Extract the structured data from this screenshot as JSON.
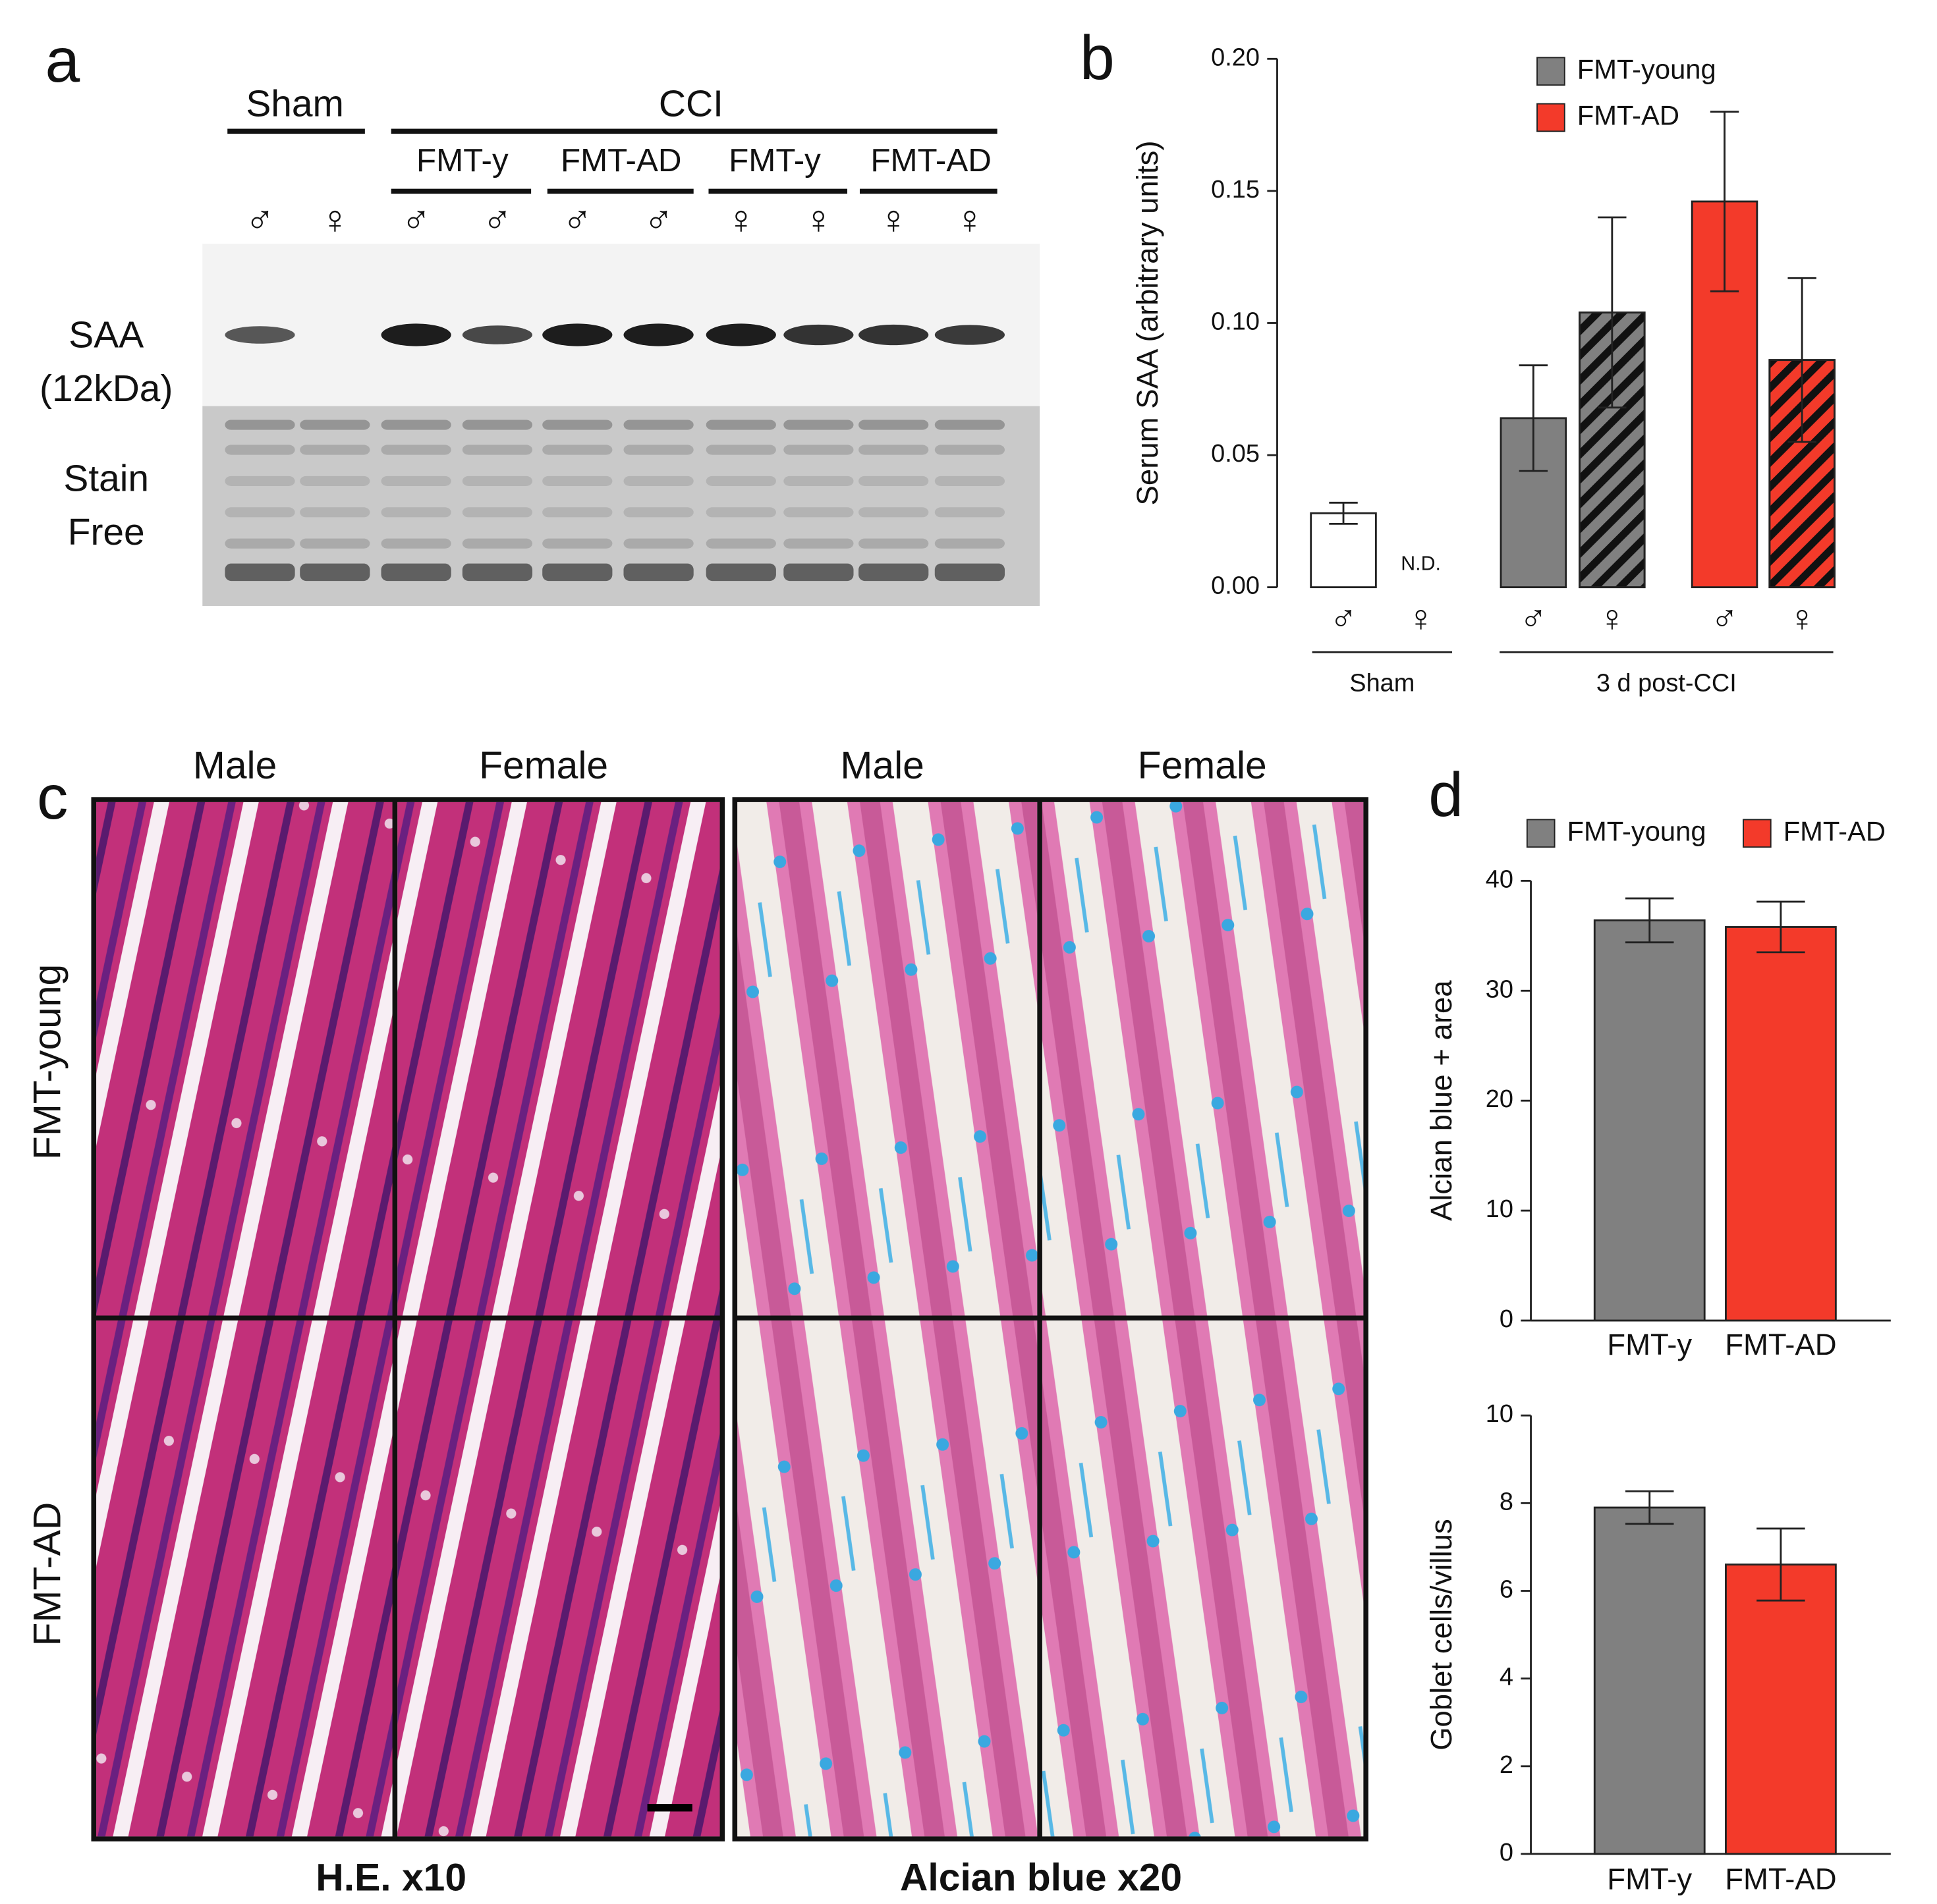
{
  "panel_labels": [
    "a",
    "b",
    "c",
    "d"
  ],
  "blot": {
    "group_labels": [
      "Sham",
      "CCI"
    ],
    "subgroup_labels": [
      "FMT-y",
      "FMT-AD",
      "FMT-y",
      "FMT-AD"
    ],
    "lane_sexes": [
      "♂",
      "♀",
      "♂",
      "♂",
      "♂",
      "♂",
      "♀",
      "♀",
      "♀",
      "♀"
    ],
    "row_labels": [
      "SAA",
      "(12kDa)",
      "Stain",
      "Free"
    ]
  },
  "histology": {
    "column_labels": [
      "Male",
      "Female",
      "Male",
      "Female"
    ],
    "row_labels": [
      "FMT-young",
      "FMT-AD"
    ],
    "stain_labels": [
      "H.E. x10",
      "Alcian blue x20"
    ]
  },
  "chart_data": [
    {
      "type": "bar",
      "ylabel": "Serum SAA (arbitrary units)",
      "categories": [
        "♂",
        "♀",
        "♂",
        "♀",
        "♂",
        "♀"
      ],
      "groups": [
        "Sham",
        "3 d post-CCI"
      ],
      "values": [
        0.028,
        null,
        0.064,
        0.104,
        0.146,
        0.086
      ],
      "errors": [
        0.004,
        null,
        0.02,
        0.036,
        0.034,
        0.031
      ],
      "colors": [
        "#ffffff",
        "#ffffff",
        "#808080",
        "#808080",
        "#f33a2a",
        "#f33a2a"
      ],
      "hatched": [
        false,
        false,
        false,
        true,
        false,
        true
      ],
      "annotations": [
        "N.D."
      ],
      "legend": [
        {
          "name": "FMT-young",
          "color": "#808080"
        },
        {
          "name": "FMT-AD",
          "color": "#f33a2a"
        }
      ],
      "ylim": [
        0,
        0.2
      ],
      "yticks": [
        {
          "value": 0,
          "label": "0.00"
        },
        0.05,
        {
          "value": 0.1,
          "label": "0.10"
        },
        0.15,
        {
          "value": 0.2,
          "label": "0.20"
        }
      ]
    },
    {
      "type": "bar",
      "ylabel": "Alcian blue + area",
      "categories": [
        "FMT-y",
        "FMT-AD"
      ],
      "values": [
        36.4,
        35.8
      ],
      "errors": [
        2.0,
        2.3
      ],
      "colors": [
        "#808080",
        "#f33a2a"
      ],
      "legend": [
        {
          "name": "FMT-young",
          "color": "#808080"
        },
        {
          "name": "FMT-AD",
          "color": "#f33a2a"
        }
      ],
      "ylim": [
        0,
        40
      ],
      "yticks": [
        0,
        10,
        20,
        30,
        40
      ]
    },
    {
      "type": "bar",
      "ylabel": "Goblet cells/villus",
      "categories": [
        "FMT-y",
        "FMT-AD"
      ],
      "values": [
        7.9,
        6.6
      ],
      "errors": [
        0.37,
        0.82
      ],
      "colors": [
        "#808080",
        "#f33a2a"
      ],
      "ylim": [
        0,
        10
      ],
      "yticks": [
        0,
        2,
        4,
        6,
        8,
        10
      ]
    }
  ]
}
